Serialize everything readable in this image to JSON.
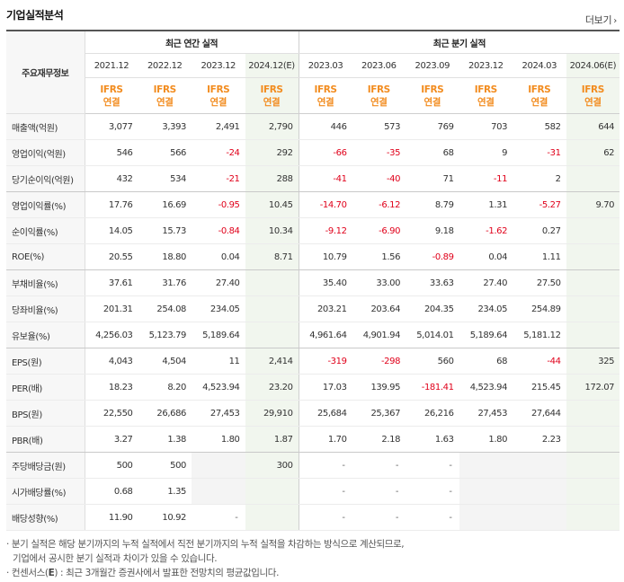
{
  "title": "기업실적분석",
  "more_label": "더보기",
  "more_icon": "chevron-right-icon",
  "row_header_label": "주요재무정보",
  "groups": {
    "annual": "최근 연간 실적",
    "quarter": "최근 분기 실적"
  },
  "periods": [
    "2021.12",
    "2022.12",
    "2023.12",
    "2024.12(E)",
    "2023.03",
    "2023.06",
    "2023.09",
    "2023.12",
    "2024.03",
    "2024.06(E)"
  ],
  "ifrs": {
    "line1": "IFRS",
    "line2": "연결"
  },
  "rows": [
    {
      "label": "매출액(억원)",
      "values": [
        "3,077",
        "3,393",
        "2,491",
        "2,790",
        "446",
        "573",
        "769",
        "703",
        "582",
        "644"
      ]
    },
    {
      "label": "영업이익(억원)",
      "values": [
        "546",
        "566",
        "-24",
        "292",
        "-66",
        "-35",
        "68",
        "9",
        "-31",
        "62"
      ]
    },
    {
      "label": "당기순이익(억원)",
      "values": [
        "432",
        "534",
        "-21",
        "288",
        "-41",
        "-40",
        "71",
        "-11",
        "2",
        ""
      ]
    },
    {
      "label": "영업이익률(%)",
      "values": [
        "17.76",
        "16.69",
        "-0.95",
        "10.45",
        "-14.70",
        "-6.12",
        "8.79",
        "1.31",
        "-5.27",
        "9.70"
      ]
    },
    {
      "label": "순이익률(%)",
      "values": [
        "14.05",
        "15.73",
        "-0.84",
        "10.34",
        "-9.12",
        "-6.90",
        "9.18",
        "-1.62",
        "0.27",
        ""
      ]
    },
    {
      "label": "ROE(%)",
      "values": [
        "20.55",
        "18.80",
        "0.04",
        "8.71",
        "10.79",
        "1.56",
        "-0.89",
        "0.04",
        "1.11",
        ""
      ]
    },
    {
      "label": "부채비율(%)",
      "values": [
        "37.61",
        "31.76",
        "27.40",
        "",
        "35.40",
        "33.00",
        "33.63",
        "27.40",
        "27.50",
        ""
      ]
    },
    {
      "label": "당좌비율(%)",
      "values": [
        "201.31",
        "254.08",
        "234.05",
        "",
        "203.21",
        "203.64",
        "204.35",
        "234.05",
        "254.89",
        ""
      ]
    },
    {
      "label": "유보율(%)",
      "values": [
        "4,256.03",
        "5,123.79",
        "5,189.64",
        "",
        "4,961.64",
        "4,901.94",
        "5,014.01",
        "5,189.64",
        "5,181.12",
        ""
      ]
    },
    {
      "label": "EPS(원)",
      "values": [
        "4,043",
        "4,504",
        "11",
        "2,414",
        "-319",
        "-298",
        "560",
        "68",
        "-44",
        "325"
      ]
    },
    {
      "label": "PER(배)",
      "values": [
        "18.23",
        "8.20",
        "4,523.94",
        "23.20",
        "17.03",
        "139.95",
        "-181.41",
        "4,523.94",
        "215.45",
        "172.07"
      ]
    },
    {
      "label": "BPS(원)",
      "values": [
        "22,550",
        "26,686",
        "27,453",
        "29,910",
        "25,684",
        "25,367",
        "26,216",
        "27,453",
        "27,644",
        ""
      ]
    },
    {
      "label": "PBR(배)",
      "values": [
        "3.27",
        "1.38",
        "1.80",
        "1.87",
        "1.70",
        "2.18",
        "1.63",
        "1.80",
        "2.23",
        ""
      ]
    },
    {
      "label": "주당배당금(원)",
      "values": [
        "500",
        "500",
        "",
        "300",
        "-",
        "-",
        "-",
        "",
        "",
        ""
      ]
    },
    {
      "label": "시가배당률(%)",
      "values": [
        "0.68",
        "1.35",
        "",
        "",
        "-",
        "-",
        "-",
        "",
        "",
        ""
      ]
    },
    {
      "label": "배당성향(%)",
      "values": [
        "11.90",
        "10.92",
        "-",
        "",
        "-",
        "-",
        "-",
        "",
        "",
        ""
      ]
    }
  ],
  "notes": {
    "line1": "· 분기 실적은 해당 분기까지의 누적 실적에서 직전 분기까지의 누적 실적을 차감하는 방식으로 계산되므로,",
    "line2": "기업에서 공시한 분기 실적과 차이가 있을 수 있습니다.",
    "line3_prefix": "· 컨센서스(",
    "line3_e": "E",
    "line3_suffix": ") : 최근 3개월간 증권사에서 발표한 전망치의 평균값입니다."
  }
}
